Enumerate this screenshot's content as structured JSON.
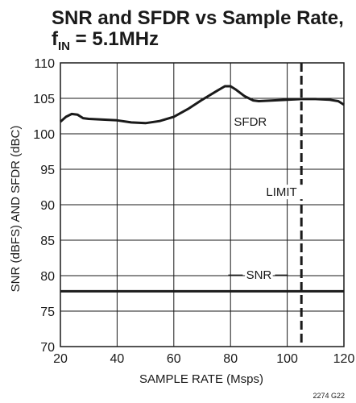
{
  "chart_data": {
    "type": "line",
    "title_line1": "SNR and SFDR vs Sample Rate,",
    "title_line2_main": "f",
    "title_line2_sub": "IN",
    "title_line2_rest": " = 5.1MHz",
    "xlabel": "SAMPLE RATE (Msps)",
    "ylabel": "SNR (dBFS) AND SFDR (dBC)",
    "xlim": [
      20,
      120
    ],
    "ylim": [
      70,
      110
    ],
    "x_ticks": [
      20,
      40,
      60,
      80,
      100,
      120
    ],
    "y_ticks": [
      70,
      75,
      80,
      85,
      90,
      95,
      100,
      105,
      110
    ],
    "grid": true,
    "series": [
      {
        "name": "SFDR",
        "x": [
          20,
          22,
          24,
          26,
          28,
          30,
          35,
          40,
          45,
          50,
          55,
          60,
          65,
          70,
          75,
          78,
          80,
          82,
          85,
          88,
          90,
          95,
          100,
          105,
          110,
          115,
          118,
          120
        ],
        "y": [
          101.7,
          102.4,
          102.8,
          102.7,
          102.2,
          102.1,
          102.0,
          101.9,
          101.6,
          101.5,
          101.8,
          102.4,
          103.5,
          104.8,
          106.0,
          106.7,
          106.7,
          106.2,
          105.3,
          104.7,
          104.6,
          104.7,
          104.8,
          104.9,
          104.9,
          104.8,
          104.6,
          104.1
        ],
        "color": "#1a1a1a"
      },
      {
        "name": "SNR",
        "x": [
          20,
          120
        ],
        "y": [
          77.8,
          77.8
        ],
        "color": "#1a1a1a"
      }
    ],
    "limit_line": {
      "x": 105,
      "label": "LIMIT"
    },
    "annotations": [
      {
        "text": "SFDR",
        "x": 87,
        "y": 101.7
      },
      {
        "text": "LIMIT",
        "x": 98,
        "y": 91.8
      },
      {
        "text": "SNR",
        "x": 90,
        "y": 80.1
      }
    ],
    "figure_code": "2274 G22"
  }
}
